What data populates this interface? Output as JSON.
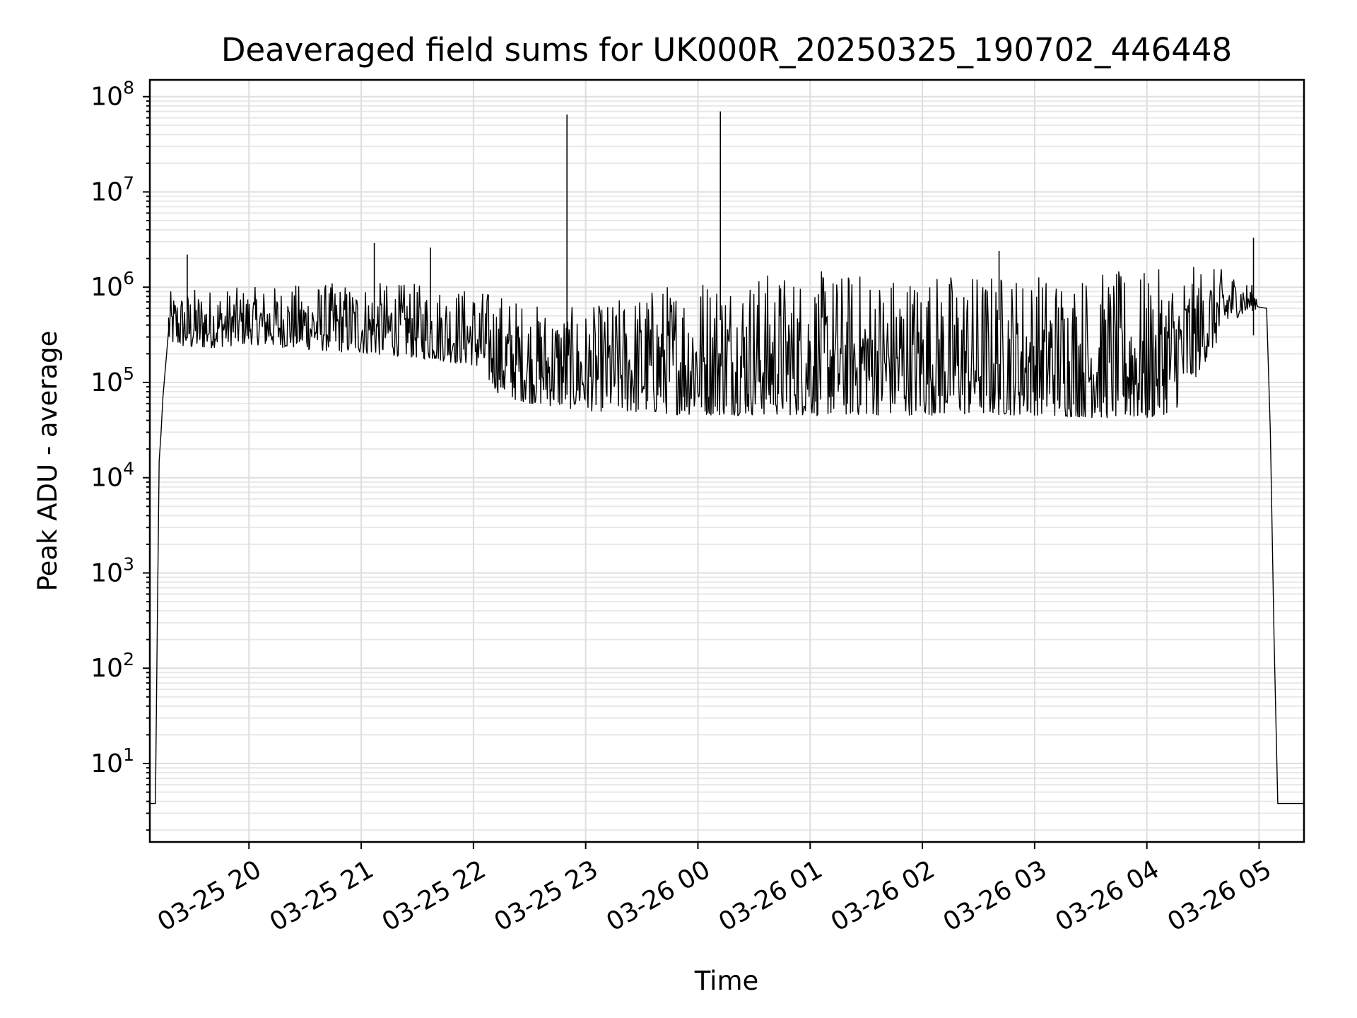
{
  "chart_data": {
    "type": "line",
    "title": "Deaveraged field sums for UK000R_20250325_190702_446448",
    "xlabel": "Time",
    "ylabel": "Peak ADU - average",
    "yscale": "log",
    "ylim": [
      1.5,
      150000000
    ],
    "xlim": [
      "2025-03-25 19:07",
      "2025-03-26 05:24"
    ],
    "grid": "major and minor",
    "legend": "none",
    "line_color": "#000000",
    "x_ticks": [
      {
        "value": "2025-03-25 20:00",
        "label": "03-25 20"
      },
      {
        "value": "2025-03-25 21:00",
        "label": "03-25 21"
      },
      {
        "value": "2025-03-25 22:00",
        "label": "03-25 22"
      },
      {
        "value": "2025-03-25 23:00",
        "label": "03-25 23"
      },
      {
        "value": "2025-03-26 00:00",
        "label": "03-26 00"
      },
      {
        "value": "2025-03-26 01:00",
        "label": "03-26 01"
      },
      {
        "value": "2025-03-26 02:00",
        "label": "03-26 02"
      },
      {
        "value": "2025-03-26 03:00",
        "label": "03-26 03"
      },
      {
        "value": "2025-03-26 04:00",
        "label": "03-26 04"
      },
      {
        "value": "2025-03-26 05:00",
        "label": "03-26 05"
      }
    ],
    "y_ticks": [
      {
        "value": 10,
        "base": "10",
        "exp": "1"
      },
      {
        "value": 100,
        "base": "10",
        "exp": "2"
      },
      {
        "value": 1000,
        "base": "10",
        "exp": "3"
      },
      {
        "value": 10000,
        "base": "10",
        "exp": "4"
      },
      {
        "value": 100000,
        "base": "10",
        "exp": "5"
      },
      {
        "value": 1000000,
        "base": "10",
        "exp": "6"
      },
      {
        "value": 10000000,
        "base": "10",
        "exp": "7"
      },
      {
        "value": 100000000,
        "base": "10",
        "exp": "8"
      }
    ],
    "series": [
      {
        "x": [
          "2025-03-25 19:07",
          "2025-03-25 19:10",
          "2025-03-25 19:11",
          "2025-03-25 19:12",
          "2025-03-25 19:13",
          "2025-03-25 19:14",
          "2025-03-25 19:15",
          "2025-03-25 19:17",
          "2025-03-25 19:20",
          "2025-03-25 19:25",
          "2025-03-25 19:30",
          "2025-03-25 19:35",
          "2025-03-25 19:40",
          "2025-03-25 19:50",
          "2025-03-25 20:00",
          "2025-03-25 20:15",
          "2025-03-25 20:30",
          "2025-03-25 20:45",
          "2025-03-25 21:00",
          "2025-03-25 21:15",
          "2025-03-25 21:30",
          "2025-03-25 21:45",
          "2025-03-25 22:00",
          "2025-03-25 22:10",
          "2025-03-25 22:20",
          "2025-03-25 22:30",
          "2025-03-25 22:45",
          "2025-03-25 23:00",
          "2025-03-25 23:30",
          "2025-03-26 00:00",
          "2025-03-26 00:30",
          "2025-03-26 01:00",
          "2025-03-26 01:30",
          "2025-03-26 02:00",
          "2025-03-26 02:30",
          "2025-03-26 03:00",
          "2025-03-26 03:30",
          "2025-03-26 04:00",
          "2025-03-26 04:15",
          "2025-03-26 04:30",
          "2025-03-26 04:45",
          "2025-03-26 05:00",
          "2025-03-26 05:04",
          "2025-03-26 05:06",
          "2025-03-26 05:08",
          "2025-03-26 05:10",
          "2025-03-26 05:12",
          "2025-03-26 05:24"
        ],
        "y": [
          3.8,
          3.8,
          300,
          15000,
          30000,
          70000,
          120000,
          350000,
          500000,
          600000,
          550000,
          500000,
          600000,
          550000,
          500000,
          500000,
          520000,
          480000,
          500000,
          480000,
          450000,
          420000,
          400000,
          300000,
          120000,
          90000,
          80000,
          75000,
          70000,
          70000,
          65000,
          60000,
          70000,
          70000,
          70000,
          80000,
          80000,
          70000,
          90000,
          200000,
          600000,
          750000,
          600000,
          30000,
          200,
          3.8,
          3.8,
          3.8
        ]
      }
    ],
    "band": {
      "x": [
        "2025-03-25 19:17",
        "2025-03-25 19:30",
        "2025-03-25 20:00",
        "2025-03-25 20:30",
        "2025-03-25 21:00",
        "2025-03-25 21:30",
        "2025-03-25 22:00",
        "2025-03-25 22:15",
        "2025-03-25 22:30",
        "2025-03-25 23:00",
        "2025-03-26 00:00",
        "2025-03-26 01:00",
        "2025-03-26 02:00",
        "2025-03-26 03:00",
        "2025-03-26 04:00",
        "2025-03-26 04:15",
        "2025-03-26 04:30",
        "2025-03-26 04:45",
        "2025-03-26 05:00"
      ],
      "low": [
        250000,
        220000,
        250000,
        220000,
        200000,
        180000,
        150000,
        70000,
        60000,
        50000,
        45000,
        45000,
        45000,
        45000,
        40000,
        50000,
        150000,
        450000,
        600000
      ],
      "high": [
        900000,
        1000000,
        1000000,
        1100000,
        1150000,
        1100000,
        1000000,
        900000,
        700000,
        600000,
        1500000,
        1500000,
        1500000,
        1500000,
        1500000,
        1600000,
        1700000,
        1500000,
        950000
      ]
    },
    "spikes": [
      {
        "x": "2025-03-25 19:27",
        "y": 2200000
      },
      {
        "x": "2025-03-25 21:07",
        "y": 2900000
      },
      {
        "x": "2025-03-25 21:37",
        "y": 2600000
      },
      {
        "x": "2025-03-25 22:50",
        "y": 65000000
      },
      {
        "x": "2025-03-26 00:12",
        "y": 70000000
      },
      {
        "x": "2025-03-26 02:41",
        "y": 2400000
      },
      {
        "x": "2025-03-26 04:57",
        "y": 3300000
      }
    ]
  }
}
